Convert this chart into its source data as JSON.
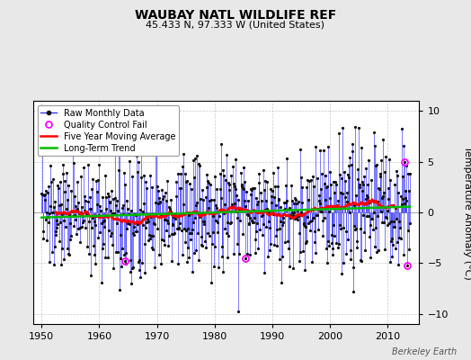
{
  "title": "WAUBAY NATL WILDLIFE REF",
  "subtitle": "45.433 N, 97.333 W (United States)",
  "ylabel": "Temperature Anomaly (°C)",
  "xlim": [
    1948.5,
    2015.5
  ],
  "ylim": [
    -11,
    11
  ],
  "yticks": [
    -10,
    -5,
    0,
    5,
    10
  ],
  "xticks": [
    1950,
    1960,
    1970,
    1980,
    1990,
    2000,
    2010
  ],
  "start_year": 1950,
  "end_year": 2013,
  "bg_color": "#e8e8e8",
  "plot_bg_color": "#ffffff",
  "raw_color": "#3333ff",
  "qc_color": "#ff00ff",
  "moving_avg_color": "#ff0000",
  "trend_color": "#00bb00",
  "attribution": "Berkeley Earth",
  "seed": 137,
  "noise_std": 2.8,
  "trend_slope": 0.02,
  "qc_fail_years": [
    1964,
    1985,
    2012,
    2013
  ],
  "qc_fail_months": [
    6,
    4,
    11,
    5
  ],
  "qc_fail_vals": [
    -4.8,
    -4.5,
    5.0,
    -5.2
  ],
  "spike_year": 1984,
  "spike_month": 2,
  "spike_val": -9.8
}
